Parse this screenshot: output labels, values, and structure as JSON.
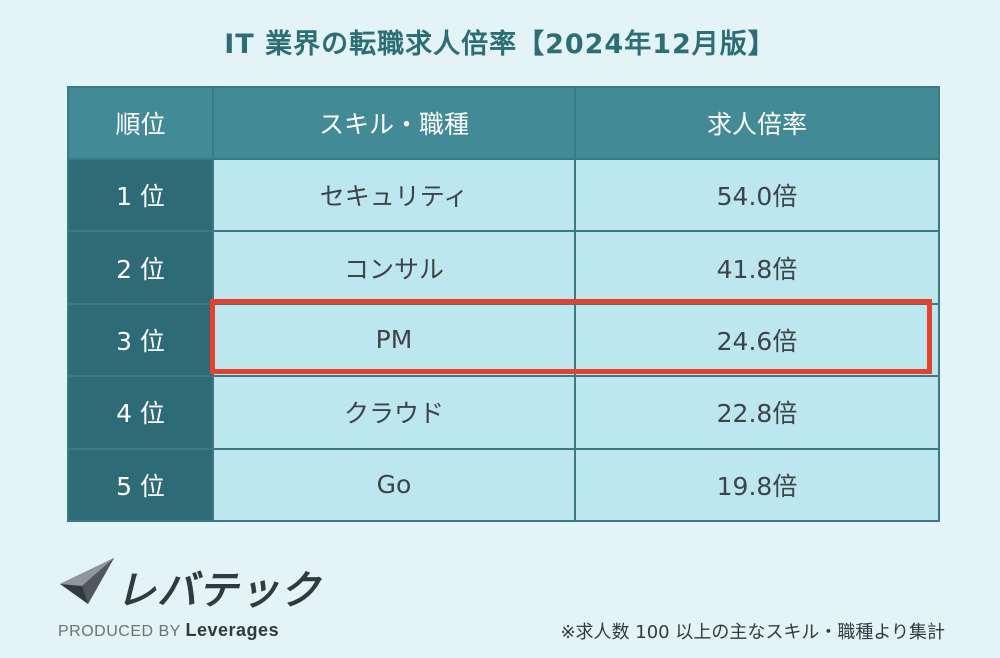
{
  "title": "IT 業界の転職求人倍率【2024年12月版】",
  "chart_data": {
    "type": "table",
    "columns": [
      "順位",
      "スキル・職種",
      "求人倍率"
    ],
    "rows": [
      {
        "rank": "1 位",
        "skill": "セキュリティ",
        "ratio": "54.0倍"
      },
      {
        "rank": "2 位",
        "skill": "コンサル",
        "ratio": "41.8倍"
      },
      {
        "rank": "3 位",
        "skill": "PM",
        "ratio": "24.6倍"
      },
      {
        "rank": "4 位",
        "skill": "クラウド",
        "ratio": "22.8倍"
      },
      {
        "rank": "5 位",
        "skill": "Go",
        "ratio": "19.8倍"
      }
    ],
    "highlight_row": "3 位",
    "highlight_color": "#e8402b"
  },
  "logo": {
    "name": "レバテック",
    "produced_by": "PRODUCED BY",
    "brand": "Leverages"
  },
  "footnote": "※求人数 100 以上の主なスキル・職種より集計",
  "colors": {
    "header": "#428a96",
    "rank_col": "#2d6c76",
    "cell": "#bde7ee",
    "title": "#2c6e76"
  }
}
